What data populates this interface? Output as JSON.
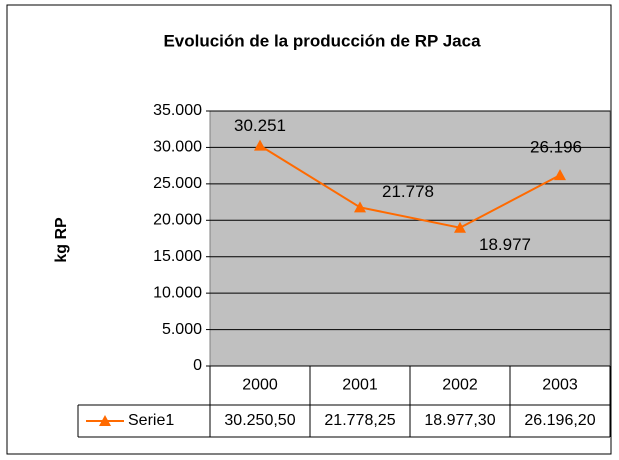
{
  "chart_data": {
    "type": "line",
    "title": "Evolución de la producción de RP Jaca",
    "y_label": "kg RP",
    "categories": [
      "2000",
      "2001",
      "2002",
      "2003"
    ],
    "series": [
      {
        "name": "Serie1",
        "color": "#ff6a00",
        "values": [
          30250.5,
          21778.25,
          18977.3,
          26196.2
        ],
        "value_labels": [
          "30.251",
          "21.778",
          "18.977",
          "26.196"
        ],
        "table_labels": [
          "30.250,50",
          "21.778,25",
          "18.977,30",
          "26.196,20"
        ]
      }
    ],
    "ylim": [
      0,
      35000
    ],
    "yticks": [
      0,
      {
        "value": 5000,
        "label": "5.000"
      },
      {
        "value": 10000,
        "label": "10.000"
      },
      {
        "value": 15000,
        "label": "15.000"
      },
      {
        "value": 20000,
        "label": "20.000"
      },
      {
        "value": 25000,
        "label": "25.000"
      },
      {
        "value": 30000,
        "label": "30.000"
      },
      {
        "value": 35000,
        "label": "35.000"
      }
    ],
    "grid": true,
    "plot_background": "#c0c0c0"
  }
}
